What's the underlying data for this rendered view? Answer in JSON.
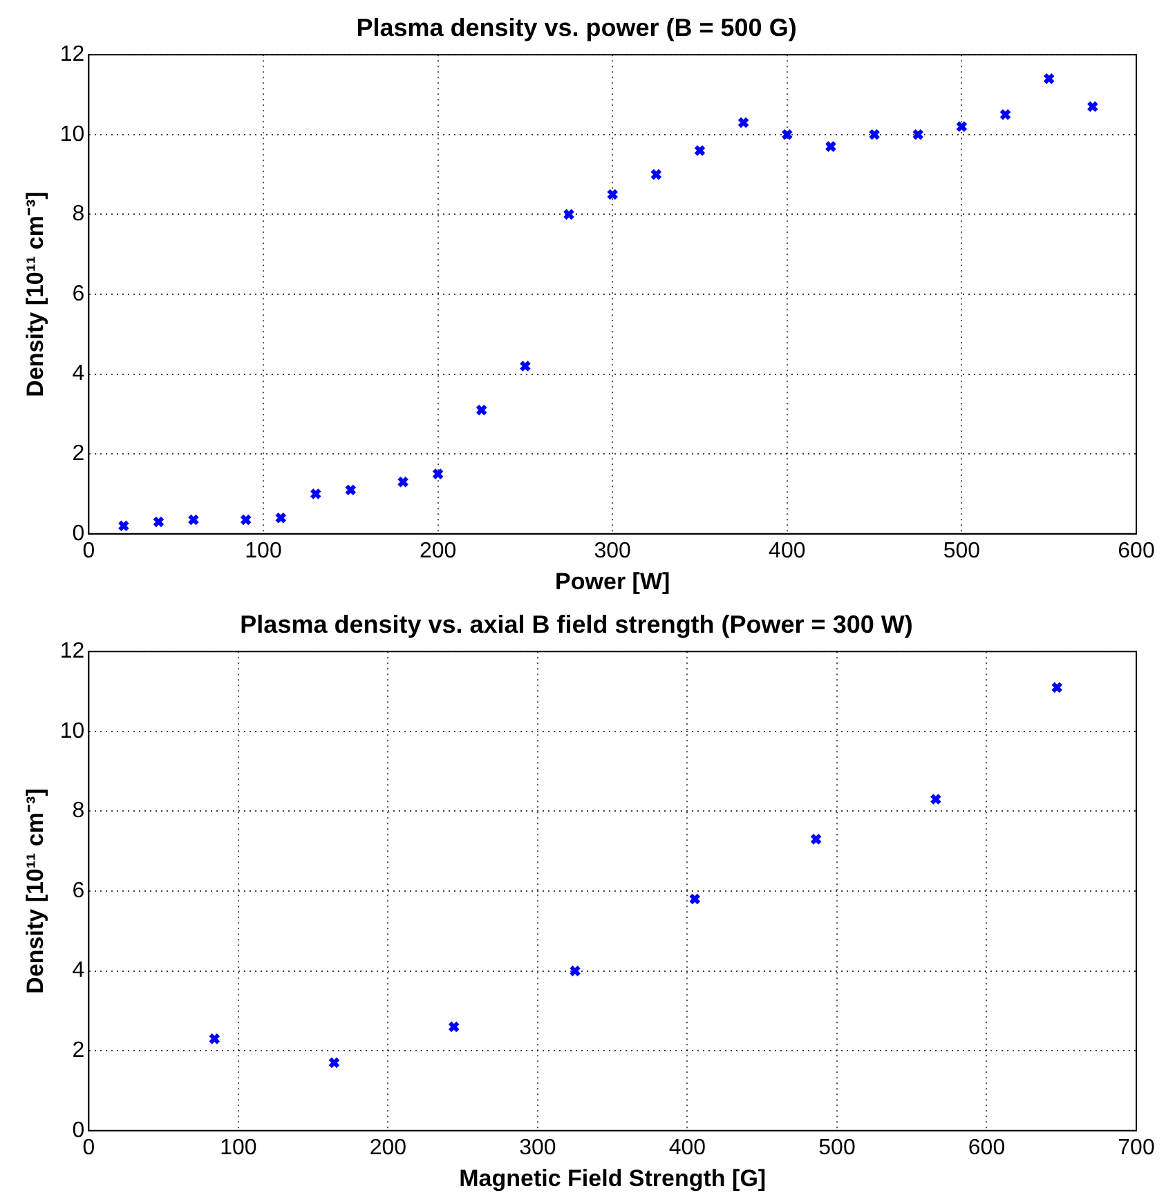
{
  "chart_data": [
    {
      "type": "scatter",
      "title": "Plasma density vs. power (B = 500 G)",
      "xlabel": "Power [W]",
      "ylabel": "Density [10¹¹ cm⁻³]",
      "x": [
        20,
        40,
        60,
        90,
        110,
        130,
        150,
        180,
        200,
        225,
        250,
        275,
        300,
        325,
        350,
        375,
        400,
        425,
        450,
        475,
        500,
        525,
        550,
        575
      ],
      "series": [
        {
          "color": "#0000ff",
          "values": [
            0.2,
            0.3,
            0.35,
            0.35,
            0.4,
            1.0,
            1.1,
            1.3,
            1.5,
            3.1,
            4.2,
            8.0,
            8.5,
            9.0,
            9.6,
            10.3,
            10.0,
            9.7,
            10.0,
            10.0,
            10.2,
            10.5,
            11.4,
            10.7
          ]
        }
      ],
      "xlim": [
        0,
        600
      ],
      "xticks": [
        0,
        100,
        200,
        300,
        400,
        500,
        600
      ],
      "ylim": [
        0,
        12
      ],
      "yticks": [
        0,
        2,
        4,
        6,
        8,
        10,
        12
      ],
      "grid": true,
      "marker": "cross"
    },
    {
      "type": "scatter",
      "title": "Plasma density vs. axial B field strength (Power = 300 W)",
      "xlabel": "Magnetic Field Strength [G]",
      "ylabel": "Density [10¹¹ cm⁻³]",
      "x": [
        84,
        164,
        244,
        325,
        405,
        486,
        566,
        647
      ],
      "series": [
        {
          "color": "#0000ff",
          "values": [
            2.3,
            1.7,
            2.6,
            4.0,
            5.8,
            7.3,
            8.3,
            11.1
          ]
        }
      ],
      "xlim": [
        0,
        700
      ],
      "xticks": [
        0,
        100,
        200,
        300,
        400,
        500,
        600,
        700
      ],
      "ylim": [
        0,
        12
      ],
      "yticks": [
        0,
        2,
        4,
        6,
        8,
        10,
        12
      ],
      "grid": true,
      "marker": "cross"
    }
  ]
}
